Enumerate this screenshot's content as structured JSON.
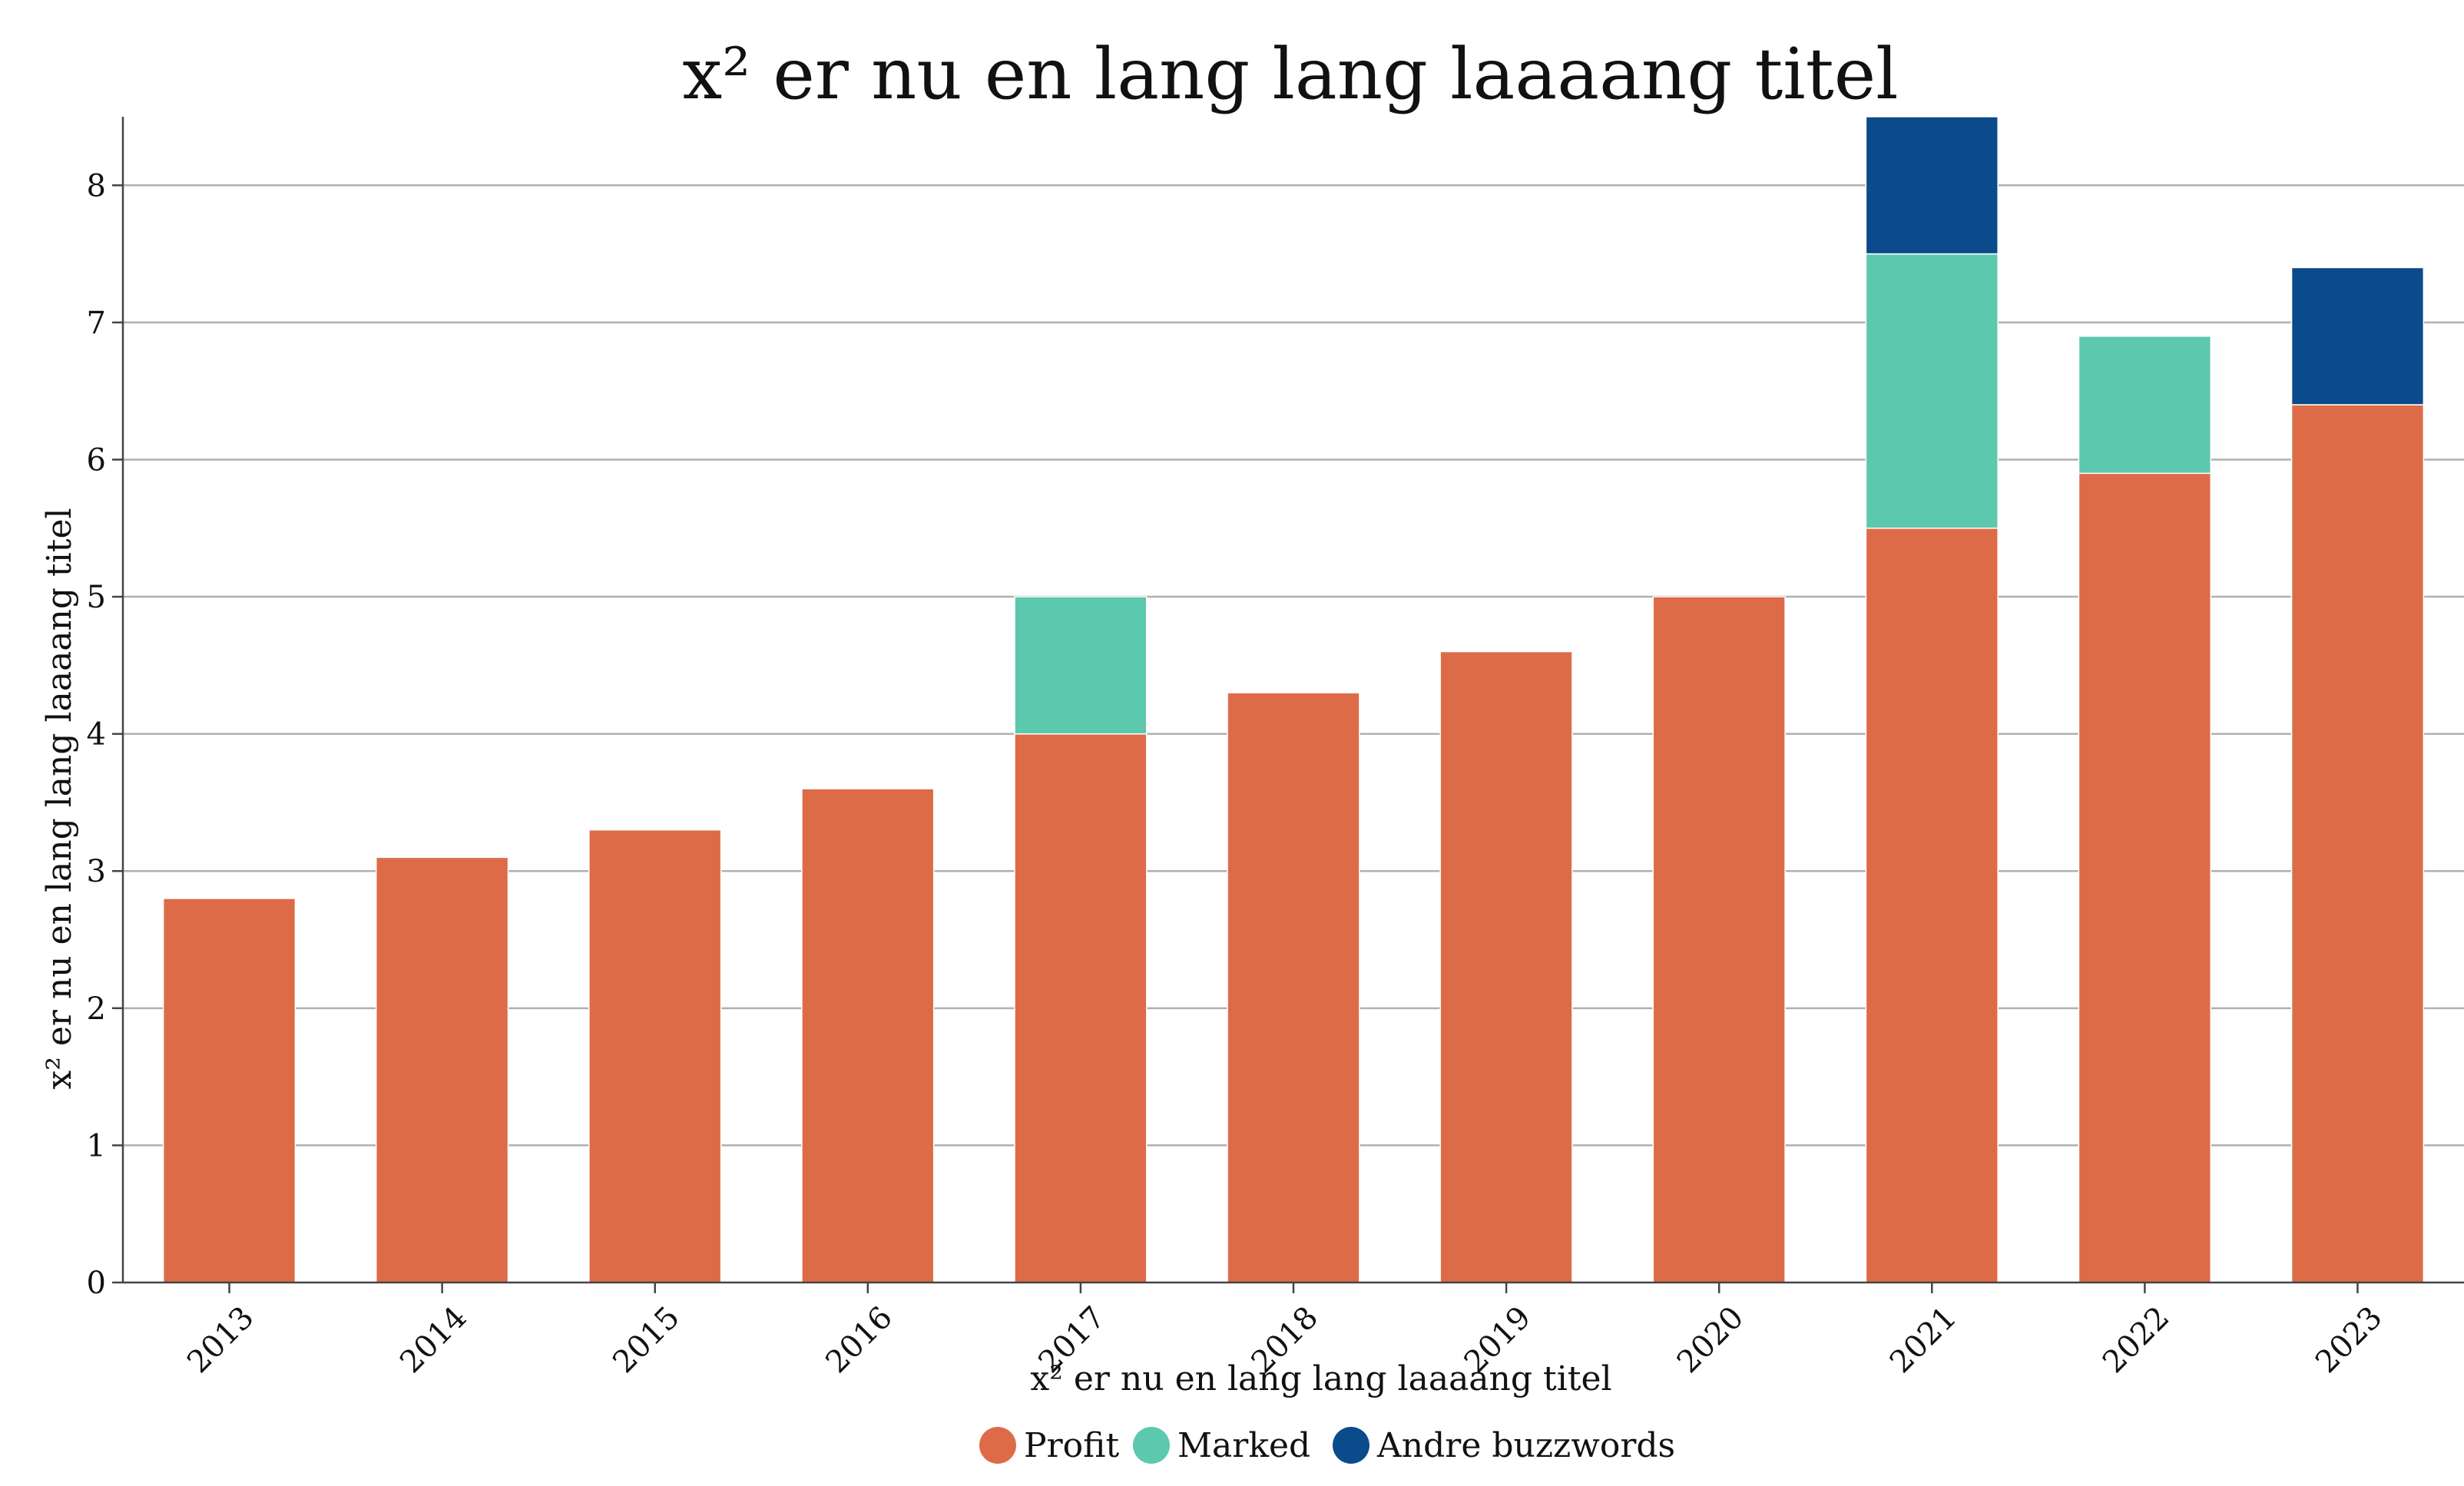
{
  "chart_data": {
    "type": "bar",
    "stacked": true,
    "title": "x² er nu en lang lang laaaang titel",
    "xlabel": "x² er nu en lang lang laaaang titel",
    "ylabel": "x² er nu en lang lang laaaang titel",
    "categories": [
      "2013",
      "2014",
      "2015",
      "2016",
      "2017",
      "2018",
      "2019",
      "2020",
      "2021",
      "2022",
      "2023"
    ],
    "series": [
      {
        "name": "Profit",
        "color": "#de6b48",
        "values": [
          2.8,
          3.1,
          3.3,
          3.6,
          4.0,
          4.3,
          4.6,
          5.0,
          5.5,
          5.9,
          6.4
        ]
      },
      {
        "name": "Marked",
        "color": "#5cc8ae",
        "values": [
          0,
          0,
          0,
          0,
          1.0,
          0,
          0,
          0,
          2.0,
          1.0,
          0
        ]
      },
      {
        "name": "Andre buzzwords",
        "color": "#0b4a8b",
        "values": [
          0,
          0,
          0,
          0,
          0,
          0,
          0,
          0,
          1.0,
          0,
          1.0
        ]
      }
    ],
    "ylim": [
      0,
      8.5
    ],
    "yticks": [
      "0",
      "1",
      "2",
      "3",
      "4",
      "5",
      "6",
      "7",
      "8"
    ],
    "grid": "horizontal",
    "legend_position": "bottom-center"
  }
}
